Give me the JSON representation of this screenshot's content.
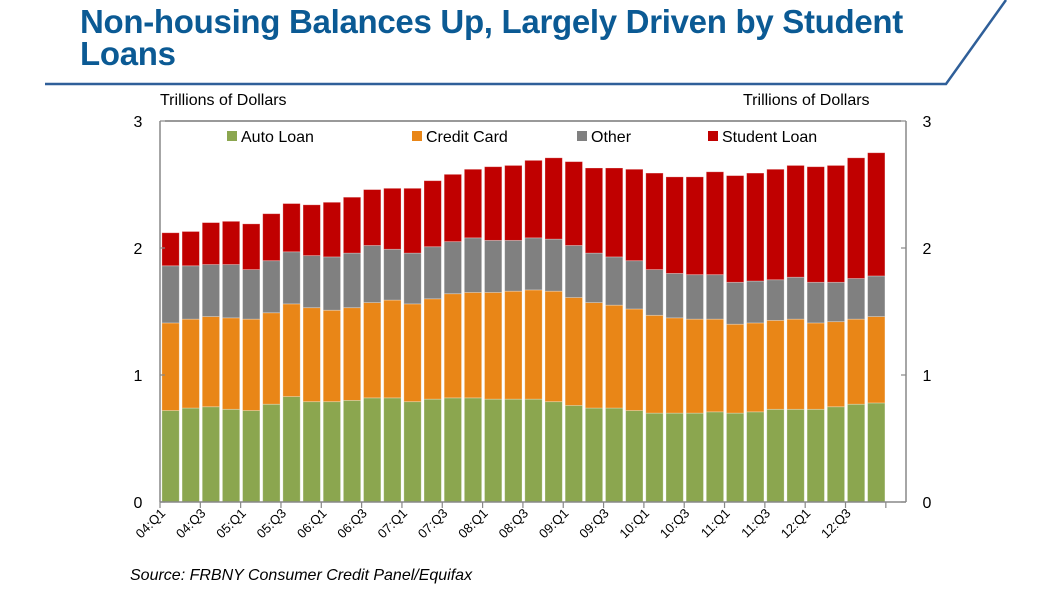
{
  "title": "Non-housing Balances Up, Largely Driven by Student Loans",
  "source": "Source: FRBNY Consumer Credit Panel/Equifax",
  "colors": {
    "title": "#0B5A94",
    "rule": "#2F5F99",
    "auto_loan": "#8BA64F",
    "credit_card": "#E98617",
    "other": "#808080",
    "student_loan": "#C00000"
  },
  "chart_data": {
    "type": "bar",
    "stacked": true,
    "title": "Non-housing Balances Up, Largely Driven by Student Loans",
    "ylabel_left": "Trillions of Dollars",
    "ylabel_right": "Trillions of Dollars",
    "xlabel": "",
    "ylim": [
      0,
      3
    ],
    "yticks": [
      0,
      1,
      2,
      3
    ],
    "grid": false,
    "legend_position": "top",
    "categories": [
      "04:Q1",
      "04:Q2",
      "04:Q3",
      "04:Q4",
      "05:Q1",
      "05:Q2",
      "05:Q3",
      "05:Q4",
      "06:Q1",
      "06:Q2",
      "06:Q3",
      "06:Q4",
      "07:Q1",
      "07:Q2",
      "07:Q3",
      "07:Q4",
      "08:Q1",
      "08:Q2",
      "08:Q3",
      "08:Q4",
      "09:Q1",
      "09:Q2",
      "09:Q3",
      "09:Q4",
      "10:Q1",
      "10:Q2",
      "10:Q3",
      "10:Q4",
      "11:Q1",
      "11:Q2",
      "11:Q3",
      "11:Q4",
      "12:Q1",
      "12:Q2",
      "12:Q3",
      "12:Q4"
    ],
    "x_tick_labels": [
      "04:Q1",
      "04:Q3",
      "05:Q1",
      "05:Q3",
      "06:Q1",
      "06:Q3",
      "07:Q1",
      "07:Q3",
      "08:Q1",
      "08:Q3",
      "09:Q1",
      "09:Q3",
      "10:Q1",
      "10:Q3",
      "11:Q1",
      "11:Q3",
      "12:Q1",
      "12:Q3"
    ],
    "series": [
      {
        "name": "Auto Loan",
        "key": "auto_loan",
        "values": [
          0.72,
          0.74,
          0.75,
          0.73,
          0.72,
          0.77,
          0.83,
          0.79,
          0.79,
          0.8,
          0.82,
          0.82,
          0.79,
          0.81,
          0.82,
          0.82,
          0.81,
          0.81,
          0.81,
          0.79,
          0.76,
          0.74,
          0.74,
          0.72,
          0.7,
          0.7,
          0.7,
          0.71,
          0.7,
          0.71,
          0.73,
          0.73,
          0.73,
          0.75,
          0.77,
          0.78
        ]
      },
      {
        "name": "Credit Card",
        "key": "credit_card",
        "values": [
          0.69,
          0.7,
          0.71,
          0.72,
          0.72,
          0.72,
          0.73,
          0.74,
          0.72,
          0.73,
          0.75,
          0.77,
          0.77,
          0.79,
          0.82,
          0.83,
          0.84,
          0.85,
          0.86,
          0.87,
          0.85,
          0.83,
          0.81,
          0.8,
          0.77,
          0.75,
          0.74,
          0.73,
          0.7,
          0.7,
          0.7,
          0.71,
          0.68,
          0.67,
          0.67,
          0.68
        ]
      },
      {
        "name": "Other",
        "key": "other",
        "values": [
          0.45,
          0.42,
          0.41,
          0.42,
          0.39,
          0.41,
          0.41,
          0.41,
          0.42,
          0.43,
          0.45,
          0.4,
          0.4,
          0.41,
          0.41,
          0.43,
          0.41,
          0.4,
          0.41,
          0.41,
          0.41,
          0.39,
          0.38,
          0.38,
          0.36,
          0.35,
          0.35,
          0.35,
          0.33,
          0.33,
          0.32,
          0.33,
          0.32,
          0.31,
          0.32,
          0.32
        ]
      },
      {
        "name": "Student Loan",
        "key": "student_loan",
        "values": [
          0.26,
          0.27,
          0.33,
          0.34,
          0.36,
          0.37,
          0.38,
          0.4,
          0.43,
          0.44,
          0.44,
          0.48,
          0.51,
          0.52,
          0.53,
          0.54,
          0.58,
          0.59,
          0.61,
          0.64,
          0.66,
          0.67,
          0.7,
          0.72,
          0.76,
          0.76,
          0.77,
          0.81,
          0.84,
          0.85,
          0.87,
          0.88,
          0.91,
          0.92,
          0.95,
          0.97
        ]
      }
    ]
  }
}
